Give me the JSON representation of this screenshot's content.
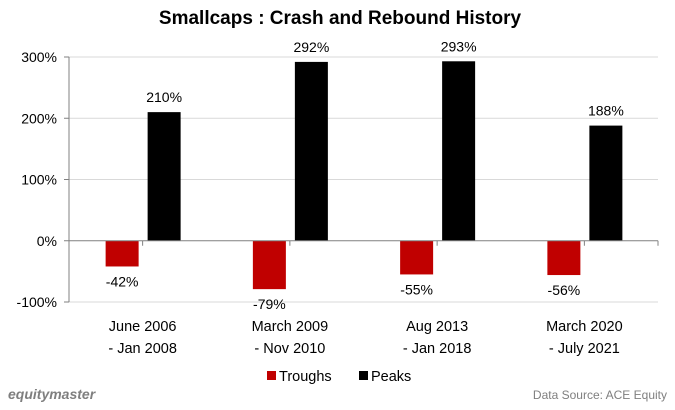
{
  "chart_data": {
    "type": "bar",
    "title": "Smallcaps : Crash and Rebound History",
    "xlabel": "",
    "ylabel": "",
    "categories": [
      [
        "June 2006",
        "- Jan 2008"
      ],
      [
        "March 2009",
        "- Nov 2010"
      ],
      [
        "Aug 2013",
        "- Jan 2018"
      ],
      [
        "March 2020",
        "- July 2021"
      ]
    ],
    "series": [
      {
        "name": "Troughs",
        "color": "#c00000",
        "values": [
          -42,
          -79,
          -55,
          -56
        ],
        "labels": [
          "-42%",
          "-79%",
          "-55%",
          "-56%"
        ]
      },
      {
        "name": "Peaks",
        "color": "#000000",
        "values": [
          210,
          292,
          293,
          188
        ],
        "labels": [
          "210%",
          "292%",
          "293%",
          "188%"
        ]
      }
    ],
    "ylim": [
      -100,
      300
    ],
    "yticks": [
      300,
      200,
      100,
      0,
      -100
    ],
    "ytick_labels": [
      "300%",
      "200%",
      "100%",
      "0%",
      "-100%"
    ],
    "grid": true,
    "legend": "bottom-center",
    "source": "Data Source: ACE Equity",
    "logo": "equitymaster"
  }
}
